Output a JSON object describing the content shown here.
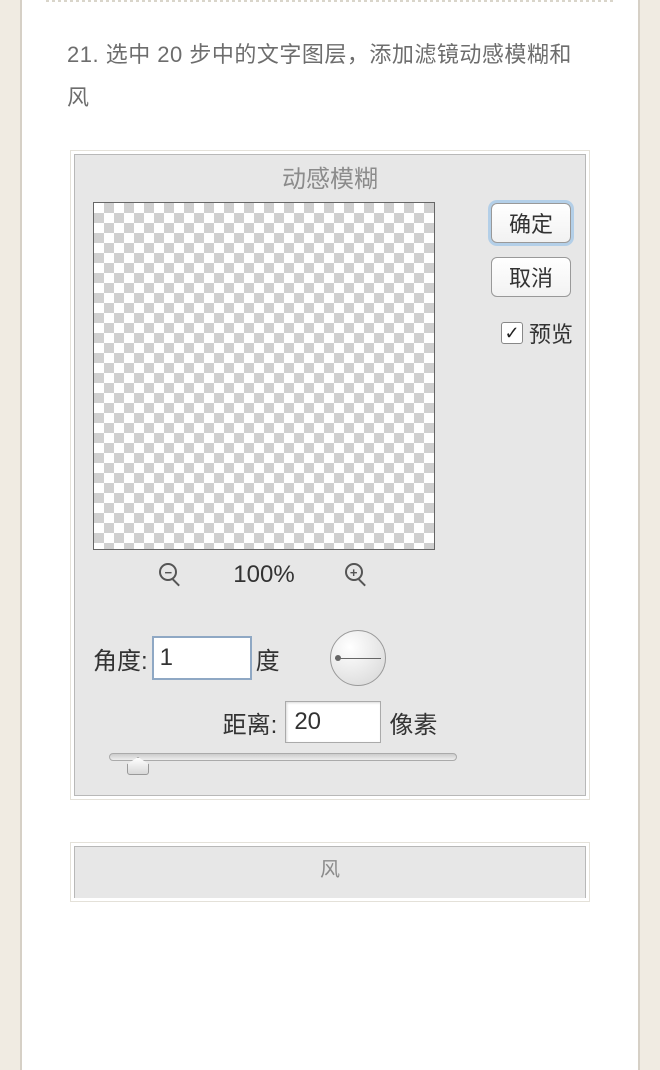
{
  "article": {
    "step_text": "21. 选中 20 步中的文字图层，添加滤镜动感模糊和风"
  },
  "dialog1": {
    "title": "动感模糊",
    "ok_label": "确定",
    "cancel_label": "取消",
    "preview_label": "预览",
    "preview_checked": true,
    "zoom_level": "100%",
    "angle_label": "角度:",
    "angle_value": "1",
    "angle_unit": "度",
    "distance_label": "距离:",
    "distance_value": "20",
    "distance_unit": "像素",
    "colors": {
      "dialog_bg": "#e7e7e7",
      "focus_ring": "#b3cfe8"
    }
  },
  "dialog2": {
    "title": "风"
  }
}
